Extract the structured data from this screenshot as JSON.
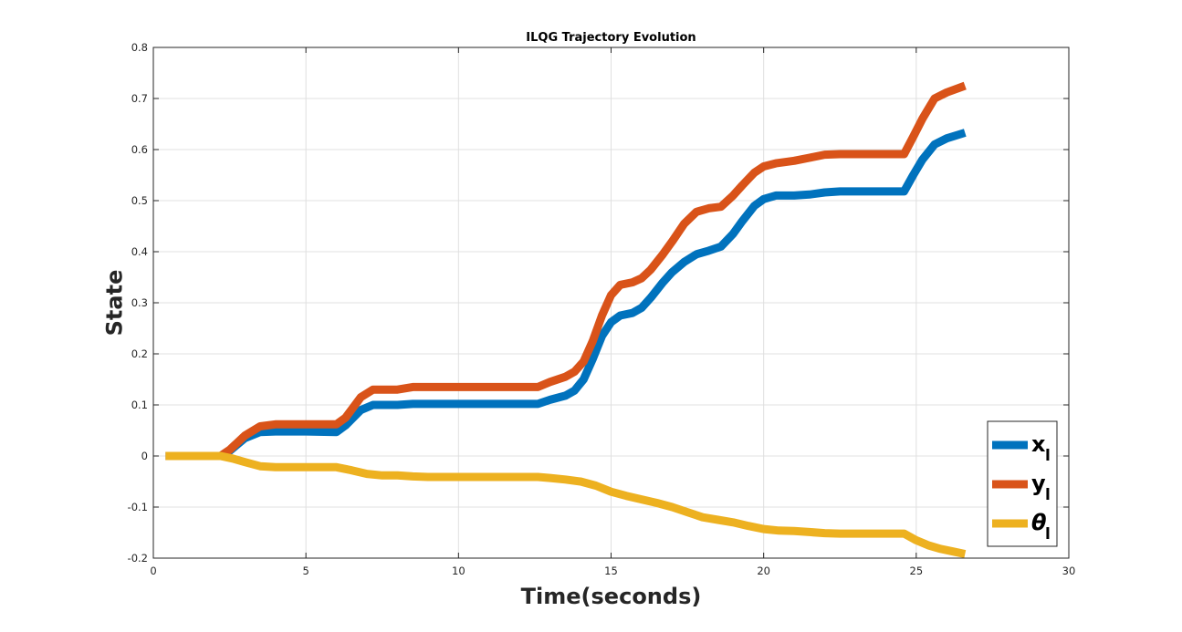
{
  "chart_data": {
    "type": "line",
    "title": "ILQG Trajectory Evolution",
    "xlabel": "Time(seconds)",
    "ylabel": "State",
    "xlim": [
      0,
      30
    ],
    "ylim": [
      -0.2,
      0.8
    ],
    "xticks": [
      0,
      5,
      10,
      15,
      20,
      25,
      30
    ],
    "yticks": [
      -0.2,
      -0.1,
      0,
      0.1,
      0.2,
      0.3,
      0.4,
      0.5,
      0.6,
      0.7,
      0.8
    ],
    "xtick_labels": [
      "0",
      "5",
      "10",
      "15",
      "20",
      "25",
      "30"
    ],
    "ytick_labels": [
      "-0.2",
      "-0.1",
      "0",
      "0.1",
      "0.2",
      "0.3",
      "0.4",
      "0.5",
      "0.6",
      "0.7",
      "0.8"
    ],
    "grid": true,
    "legend_position": "bottom-right",
    "series": [
      {
        "name": "x",
        "legend_main": "x",
        "legend_sub": "l",
        "color": "#0072BD",
        "x": [
          0.4,
          2.2,
          2.5,
          3.0,
          3.5,
          4.0,
          5.0,
          6.0,
          6.3,
          6.8,
          7.2,
          8.0,
          8.5,
          10.0,
          12.6,
          13.0,
          13.5,
          13.8,
          14.1,
          14.4,
          14.7,
          15.0,
          15.3,
          15.7,
          16.0,
          16.3,
          16.7,
          17.0,
          17.4,
          17.8,
          18.2,
          18.6,
          19.0,
          19.3,
          19.7,
          20.0,
          20.4,
          21.0,
          21.5,
          22.0,
          22.5,
          23.5,
          24.6,
          24.9,
          25.2,
          25.6,
          26.0,
          26.6
        ],
        "y": [
          0.0,
          0.0,
          0.01,
          0.035,
          0.047,
          0.048,
          0.048,
          0.047,
          0.06,
          0.09,
          0.1,
          0.1,
          0.102,
          0.102,
          0.102,
          0.11,
          0.118,
          0.128,
          0.15,
          0.19,
          0.235,
          0.262,
          0.275,
          0.28,
          0.29,
          0.31,
          0.34,
          0.36,
          0.38,
          0.395,
          0.402,
          0.41,
          0.435,
          0.46,
          0.49,
          0.503,
          0.51,
          0.51,
          0.512,
          0.516,
          0.518,
          0.518,
          0.518,
          0.55,
          0.58,
          0.61,
          0.622,
          0.633
        ]
      },
      {
        "name": "y",
        "legend_main": "y",
        "legend_sub": "l",
        "color": "#D95319",
        "x": [
          0.4,
          2.2,
          2.5,
          3.0,
          3.5,
          4.0,
          5.0,
          6.0,
          6.3,
          6.8,
          7.2,
          8.0,
          8.5,
          10.0,
          12.6,
          13.0,
          13.5,
          13.8,
          14.1,
          14.4,
          14.7,
          15.0,
          15.3,
          15.7,
          16.0,
          16.3,
          16.7,
          17.0,
          17.4,
          17.8,
          18.2,
          18.6,
          19.0,
          19.3,
          19.7,
          20.0,
          20.4,
          21.0,
          21.5,
          22.0,
          22.5,
          23.5,
          24.6,
          24.9,
          25.2,
          25.6,
          26.0,
          26.6
        ],
        "y": [
          0.0,
          0.0,
          0.012,
          0.04,
          0.058,
          0.062,
          0.062,
          0.062,
          0.075,
          0.115,
          0.13,
          0.13,
          0.135,
          0.135,
          0.135,
          0.145,
          0.155,
          0.165,
          0.185,
          0.225,
          0.275,
          0.315,
          0.335,
          0.34,
          0.348,
          0.365,
          0.395,
          0.42,
          0.455,
          0.478,
          0.485,
          0.488,
          0.51,
          0.53,
          0.555,
          0.567,
          0.573,
          0.578,
          0.584,
          0.59,
          0.591,
          0.591,
          0.591,
          0.625,
          0.66,
          0.7,
          0.712,
          0.725
        ]
      },
      {
        "name": "θ",
        "legend_main": "θ",
        "legend_sub": "l",
        "color": "#EDB120",
        "x": [
          0.4,
          2.2,
          2.6,
          3.0,
          3.5,
          4.0,
          5.0,
          6.0,
          6.5,
          7.0,
          7.5,
          8.0,
          8.5,
          9.0,
          10.0,
          12.6,
          13.0,
          13.5,
          14.0,
          14.5,
          15.0,
          15.5,
          16.0,
          16.5,
          17.0,
          17.5,
          18.0,
          18.5,
          19.0,
          19.5,
          20.0,
          20.5,
          21.0,
          21.5,
          22.0,
          22.5,
          23.5,
          24.6,
          25.0,
          25.4,
          25.8,
          26.2,
          26.6
        ],
        "y": [
          0.0,
          0.0,
          -0.005,
          -0.012,
          -0.02,
          -0.022,
          -0.022,
          -0.022,
          -0.028,
          -0.035,
          -0.038,
          -0.038,
          -0.04,
          -0.041,
          -0.041,
          -0.041,
          -0.043,
          -0.046,
          -0.05,
          -0.058,
          -0.07,
          -0.078,
          -0.085,
          -0.092,
          -0.1,
          -0.11,
          -0.12,
          -0.125,
          -0.13,
          -0.137,
          -0.143,
          -0.146,
          -0.147,
          -0.149,
          -0.151,
          -0.152,
          -0.152,
          -0.152,
          -0.165,
          -0.175,
          -0.182,
          -0.187,
          -0.192
        ]
      }
    ]
  }
}
